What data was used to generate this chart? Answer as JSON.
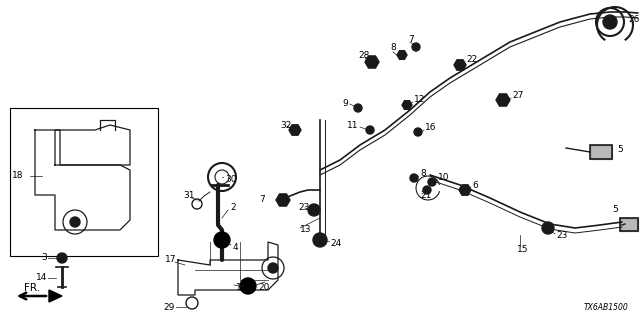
{
  "bg_color": "#ffffff",
  "diagram_code": "TX6AB1500",
  "lw_main": 1.2,
  "lw_thin": 0.7,
  "gray": "#1a1a1a"
}
